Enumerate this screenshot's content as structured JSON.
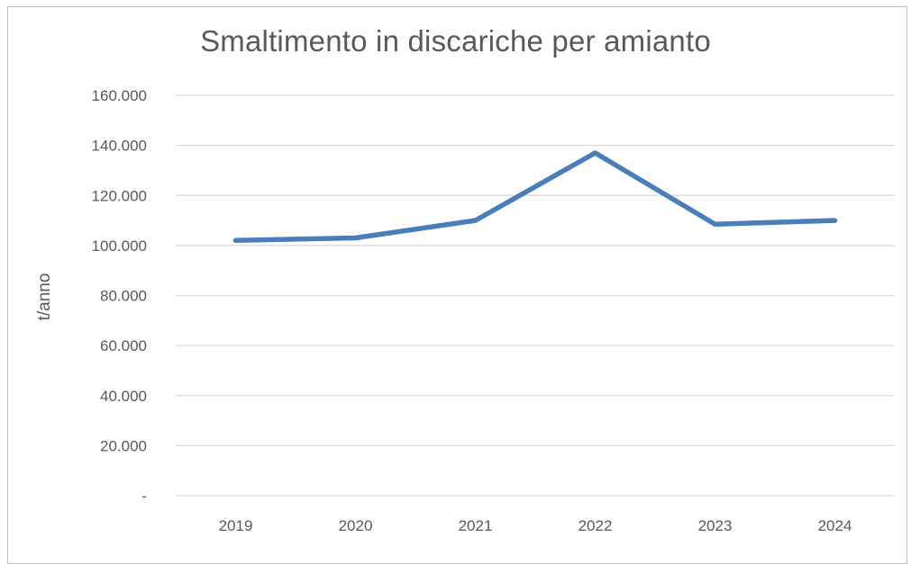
{
  "chart_data": {
    "type": "line",
    "title": "Smaltimento in discariche per amianto",
    "xlabel": "",
    "ylabel": "t/anno",
    "categories": [
      "2019",
      "2020",
      "2021",
      "2022",
      "2023",
      "2024"
    ],
    "series": [
      {
        "values": [
          102000,
          103000,
          110000,
          137000,
          108500,
          110000
        ],
        "color": "#4a7ebb"
      }
    ],
    "ylim": [
      0,
      160000
    ],
    "yticks": [
      0,
      20000,
      40000,
      60000,
      80000,
      100000,
      120000,
      140000,
      160000
    ],
    "ytick_labels": [
      "-",
      "20.000",
      "40.000",
      "60.000",
      "80.000",
      "100.000",
      "120.000",
      "140.000",
      "160.000"
    ],
    "grid": true,
    "legend": "none"
  }
}
